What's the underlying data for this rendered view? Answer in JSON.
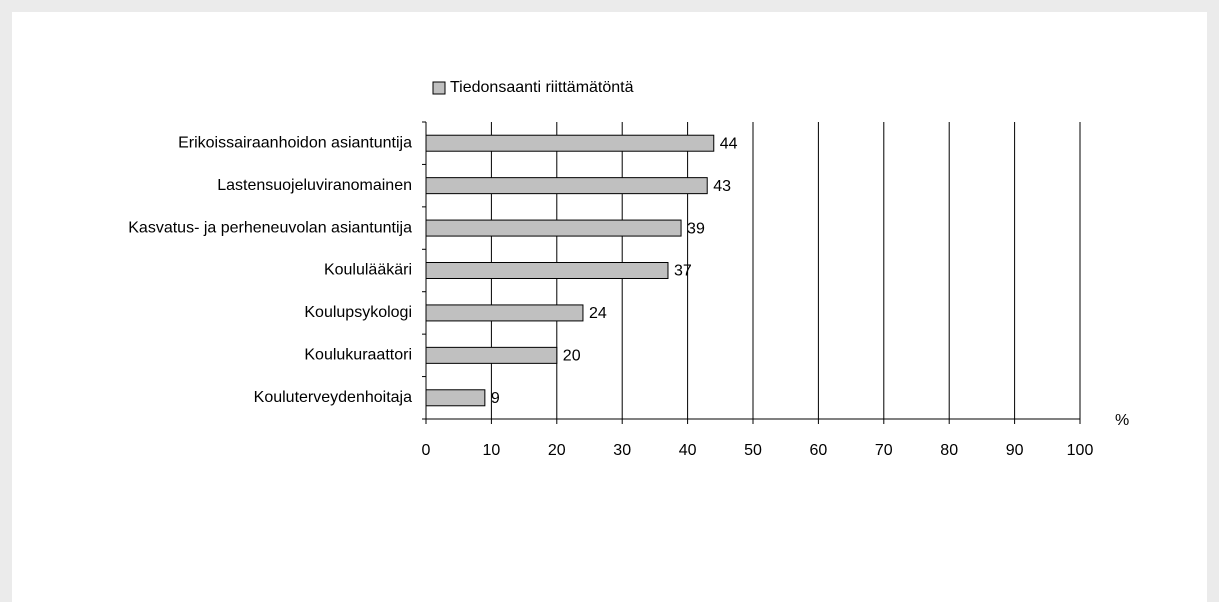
{
  "chart_data": {
    "type": "hbar",
    "categories": [
      "Erikoissairaanhoidon asiantuntija",
      "Lastensuojeluviranomainen",
      "Kasvatus- ja perheneuvolan asiantuntija",
      "Koululääkäri",
      "Koulupsykologi",
      "Koulukuraattori",
      "Kouluterveydenhoitaja"
    ],
    "series": [
      {
        "name": "Tiedonsaanti riittämätöntä",
        "color": "#c0c0c0",
        "values": [
          44,
          43,
          39,
          37,
          24,
          20,
          9
        ]
      }
    ],
    "x_label": "%",
    "xlim": [
      0,
      100
    ],
    "xticks": [
      0,
      10,
      20,
      30,
      40,
      50,
      60,
      70,
      80,
      90,
      100
    ],
    "grid": true,
    "legend": "top"
  }
}
